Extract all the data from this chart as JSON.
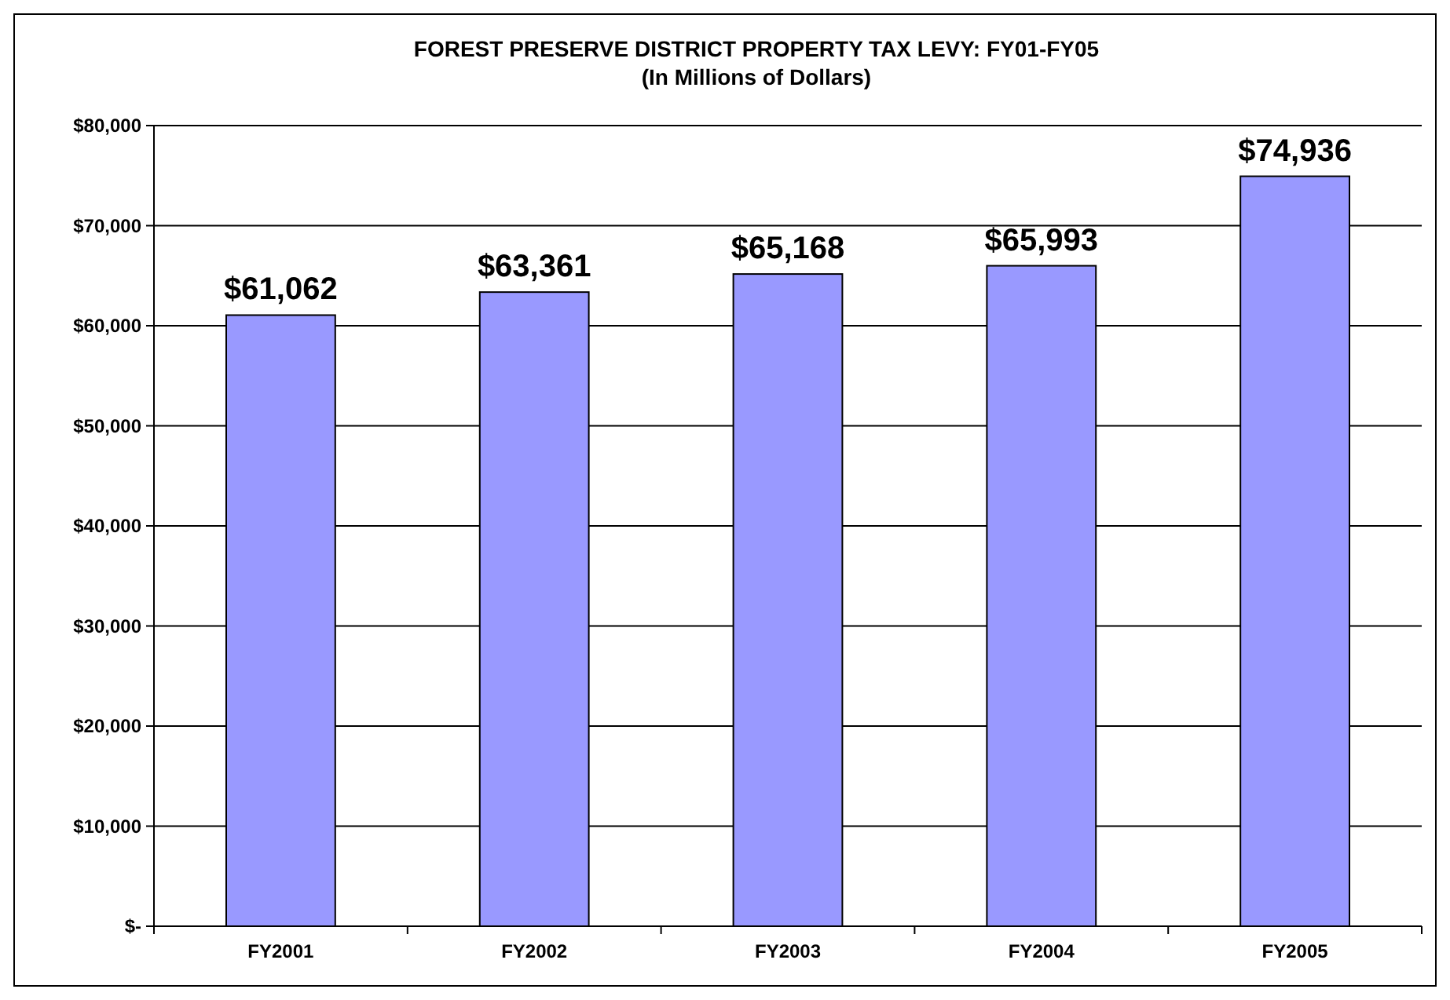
{
  "chart_data": {
    "type": "bar",
    "title": "FOREST PRESERVE DISTRICT PROPERTY TAX LEVY: FY01-FY05",
    "subtitle": "(In Millions of Dollars)",
    "categories": [
      "FY2001",
      "FY2002",
      "FY2003",
      "FY2004",
      "FY2005"
    ],
    "values": [
      61062,
      63361,
      65168,
      65993,
      74936
    ],
    "value_labels": [
      "$61,062",
      "$63,361",
      "$65,168",
      "$65,993",
      "$74,936"
    ],
    "color": "#9999ff",
    "ylim": [
      0,
      80000
    ],
    "yticks": [
      {
        "value": 0,
        "label": "$-"
      },
      {
        "value": 10000,
        "label": "$10,000"
      },
      {
        "value": 20000,
        "label": "$20,000"
      },
      {
        "value": 30000,
        "label": "$30,000"
      },
      {
        "value": 40000,
        "label": "$40,000"
      },
      {
        "value": 50000,
        "label": "$50,000"
      },
      {
        "value": 60000,
        "label": "$60,000"
      },
      {
        "value": 70000,
        "label": "$70,000"
      },
      {
        "value": 80000,
        "label": "$80,000"
      }
    ],
    "grid": "y"
  }
}
